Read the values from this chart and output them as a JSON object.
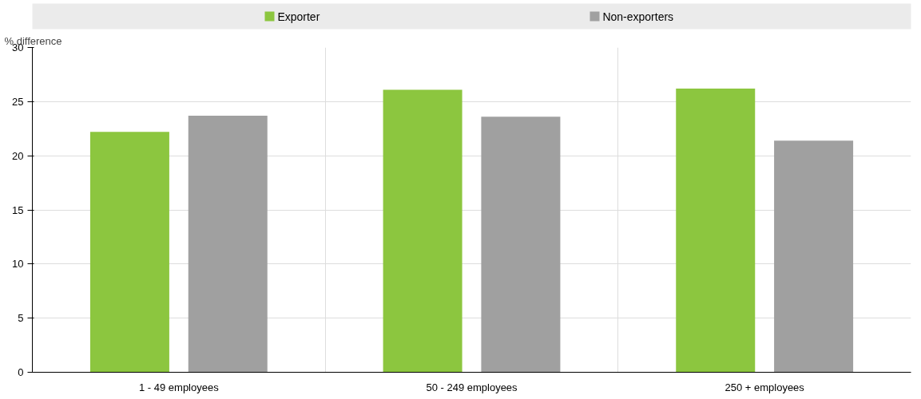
{
  "chart_data": {
    "type": "bar",
    "ylabel": "% difference",
    "categories": [
      "1 - 49 employees",
      "50 - 249 employees",
      "250 + employees"
    ],
    "series": [
      {
        "name": "Exporter",
        "color": "#8cc63f",
        "values": [
          22.2,
          26.1,
          26.2
        ]
      },
      {
        "name": "Non-exporters",
        "color": "#a0a0a0",
        "values": [
          23.7,
          23.6,
          21.4
        ]
      }
    ],
    "ylim": [
      0,
      30
    ],
    "yticks": [
      0,
      5,
      10,
      15,
      20,
      25,
      30
    ],
    "grid": true,
    "legend": "top"
  }
}
